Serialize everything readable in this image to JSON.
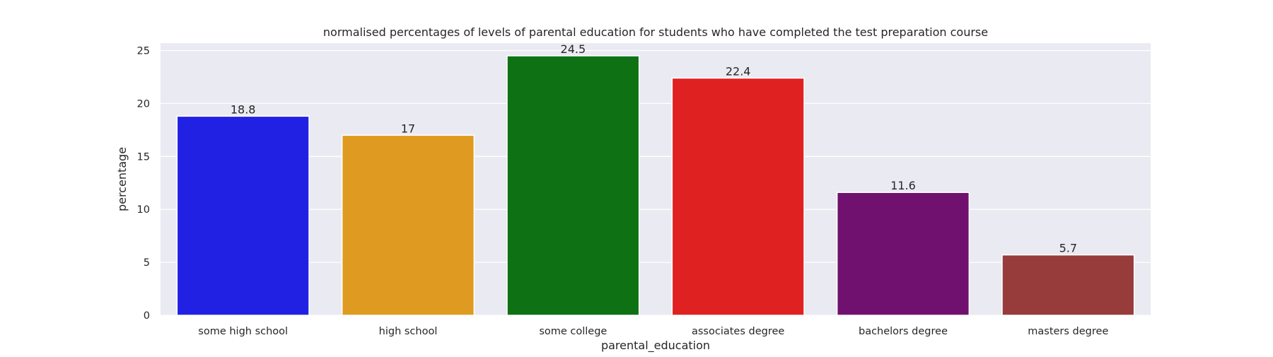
{
  "chart_data": {
    "type": "bar",
    "title": "normalised percentages of levels of parental education for students who have completed the test preparation course",
    "xlabel": "parental_education",
    "ylabel": "percentage",
    "categories": [
      "some high school",
      "high school",
      "some college",
      "associates degree",
      "bachelors degree",
      "masters degree"
    ],
    "values": [
      18.8,
      17,
      24.5,
      22.4,
      11.6,
      5.7
    ],
    "value_labels": [
      "18.8",
      "17",
      "24.5",
      "22.4",
      "11.6",
      "5.7"
    ],
    "colors": [
      "#2121e4",
      "#df9b21",
      "#0e7113",
      "#df2121",
      "#71116f",
      "#973b3b"
    ],
    "ylim": [
      0,
      25.7
    ],
    "yticks": [
      0,
      5,
      10,
      15,
      20,
      25
    ],
    "grid": true,
    "background_color": "#eaeaf2"
  }
}
